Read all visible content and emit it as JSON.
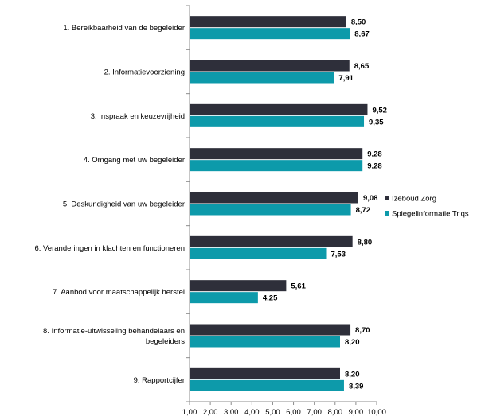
{
  "chart_data": {
    "type": "bar",
    "orientation": "horizontal",
    "categories": [
      [
        "1. Bereikbaarheid van de begeleider"
      ],
      [
        "2. Informatievoorziening"
      ],
      [
        "3. Inspraak en keuzevrijheid"
      ],
      [
        "4. Omgang met uw begeleider"
      ],
      [
        "5. Deskundigheid van uw begeleider"
      ],
      [
        "6. Veranderingen in klachten en functioneren"
      ],
      [
        "7. Aanbod voor maatschappelijk herstel"
      ],
      [
        "8. Informatie-uitwisseling behandelaars en",
        "begeleiders"
      ],
      [
        "9. Rapportcijfer"
      ]
    ],
    "series": [
      {
        "name": "Izeboud Zorg",
        "color": "#2e2f3a",
        "values": [
          8.5,
          8.65,
          9.52,
          9.28,
          9.08,
          8.8,
          5.61,
          8.7,
          8.2
        ],
        "labels": [
          "8,50",
          "8,65",
          "9,52",
          "9,28",
          "9,08",
          "8,80",
          "5,61",
          "8,70",
          "8,20"
        ]
      },
      {
        "name": "Spiegelinformatie Triqs",
        "color": "#0d9aaa",
        "values": [
          8.67,
          7.91,
          9.35,
          9.28,
          8.72,
          7.53,
          4.25,
          8.2,
          8.39
        ],
        "labels": [
          "8,67",
          "7,91",
          "9,35",
          "9,28",
          "8,72",
          "7,53",
          "4,25",
          "8,20",
          "8,39"
        ]
      }
    ],
    "xlim": [
      1.0,
      10.0
    ],
    "xticks": [
      1,
      2,
      3,
      4,
      5,
      6,
      7,
      8,
      9,
      10
    ],
    "xtick_labels": [
      "1,00",
      "2,00",
      "3,00",
      "4,00",
      "5,00",
      "6,00",
      "7,00",
      "8,00",
      "9,00",
      "10,00"
    ],
    "legend": [
      "Izeboud Zorg",
      "Spiegelinformatie Triqs"
    ],
    "legend_position": "right",
    "title": "",
    "xlabel": "",
    "ylabel": ""
  }
}
